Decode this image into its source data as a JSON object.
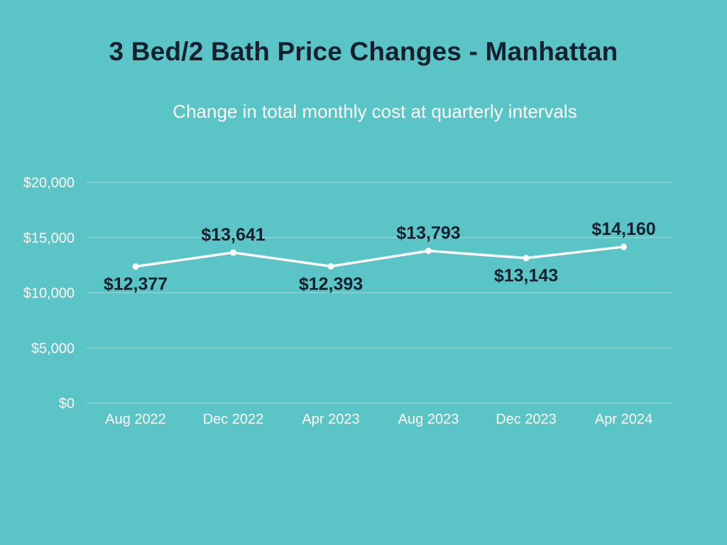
{
  "colors": {
    "background": "#5bc4c6",
    "title": "#15202e",
    "line": "#ffffff",
    "grid": "#8fd8d9",
    "label": "#15202e"
  },
  "chart_data": {
    "type": "line",
    "title": "3 Bed/2 Bath Price Changes - Manhattan",
    "subtitle": "Change in total monthly cost at quarterly intervals",
    "xlabel": "",
    "ylabel": "",
    "categories": [
      "Aug 2022",
      "Dec 2022",
      "Apr 2023",
      "Aug 2023",
      "Dec 2023",
      "Apr 2024"
    ],
    "series": [
      {
        "name": "Total monthly cost",
        "values": [
          12377,
          13641,
          12393,
          13793,
          13143,
          14160
        ],
        "labels": [
          "$12,377",
          "$13,641",
          "$12,393",
          "$13,793",
          "$13,143",
          "$14,160"
        ],
        "label_positions": [
          "below",
          "above",
          "below",
          "above",
          "below",
          "above"
        ]
      }
    ],
    "ylim": [
      0,
      20000
    ],
    "yticks": [
      0,
      5000,
      10000,
      15000,
      20000
    ],
    "ytick_labels": [
      "$0",
      "$5,000",
      "$10,000",
      "$15,000",
      "$20,000"
    ],
    "grid": true,
    "legend": "none"
  }
}
